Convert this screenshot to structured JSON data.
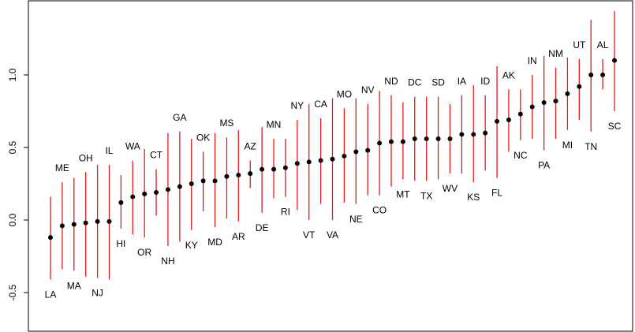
{
  "chart_data": {
    "type": "scatter",
    "title": "",
    "xlabel": "",
    "ylabel": "",
    "ylim": [
      -0.72,
      1.48
    ],
    "yticks": [
      -0.5,
      0.0,
      0.5,
      1.0
    ],
    "ytick_labels": [
      "-0.5",
      "0.0",
      "0.5",
      "1.0"
    ],
    "point_color": "#000000",
    "interval_color": "#e31a1c",
    "points": [
      {
        "label": "LA",
        "y": -0.12,
        "lo": -0.41,
        "hi": 0.16,
        "label_pos": "below"
      },
      {
        "label": "ME",
        "y": -0.04,
        "lo": -0.34,
        "hi": 0.26,
        "label_pos": "above"
      },
      {
        "label": "MA",
        "y": -0.03,
        "lo": -0.35,
        "hi": 0.29,
        "label_pos": "below"
      },
      {
        "label": "OH",
        "y": -0.02,
        "lo": -0.39,
        "hi": 0.33,
        "label_pos": "above"
      },
      {
        "label": "NJ",
        "y": -0.01,
        "lo": -0.4,
        "hi": 0.38,
        "label_pos": "below"
      },
      {
        "label": "IL",
        "y": -0.01,
        "lo": -0.41,
        "hi": 0.38,
        "label_pos": "above"
      },
      {
        "label": "HI",
        "y": 0.12,
        "lo": -0.06,
        "hi": 0.31,
        "label_pos": "below"
      },
      {
        "label": "WA",
        "y": 0.16,
        "lo": -0.1,
        "hi": 0.41,
        "label_pos": "above"
      },
      {
        "label": "OR",
        "y": 0.18,
        "lo": -0.12,
        "hi": 0.49,
        "label_pos": "below"
      },
      {
        "label": "CT",
        "y": 0.19,
        "lo": 0.03,
        "hi": 0.35,
        "label_pos": "above"
      },
      {
        "label": "NH",
        "y": 0.21,
        "lo": -0.18,
        "hi": 0.6,
        "label_pos": "below"
      },
      {
        "label": "GA",
        "y": 0.23,
        "lo": -0.15,
        "hi": 0.61,
        "label_pos": "above"
      },
      {
        "label": "KY",
        "y": 0.25,
        "lo": -0.07,
        "hi": 0.56,
        "label_pos": "below"
      },
      {
        "label": "OK",
        "y": 0.27,
        "lo": 0.06,
        "hi": 0.47,
        "label_pos": "above"
      },
      {
        "label": "MD",
        "y": 0.27,
        "lo": -0.05,
        "hi": 0.6,
        "label_pos": "below"
      },
      {
        "label": "MS",
        "y": 0.3,
        "lo": 0.01,
        "hi": 0.57,
        "label_pos": "above"
      },
      {
        "label": "AR",
        "y": 0.31,
        "lo": -0.01,
        "hi": 0.62,
        "label_pos": "below"
      },
      {
        "label": "AZ",
        "y": 0.32,
        "lo": 0.22,
        "hi": 0.41,
        "label_pos": "above"
      },
      {
        "label": "DE",
        "y": 0.35,
        "lo": 0.05,
        "hi": 0.64,
        "label_pos": "below"
      },
      {
        "label": "MN",
        "y": 0.35,
        "lo": 0.15,
        "hi": 0.56,
        "label_pos": "above"
      },
      {
        "label": "RI",
        "y": 0.36,
        "lo": 0.16,
        "hi": 0.56,
        "label_pos": "below"
      },
      {
        "label": "NY",
        "y": 0.39,
        "lo": 0.07,
        "hi": 0.69,
        "label_pos": "above"
      },
      {
        "label": "VT",
        "y": 0.4,
        "lo": 0.0,
        "hi": 0.8,
        "label_pos": "below"
      },
      {
        "label": "CA",
        "y": 0.41,
        "lo": 0.11,
        "hi": 0.7,
        "label_pos": "above"
      },
      {
        "label": "VA",
        "y": 0.42,
        "lo": 0.0,
        "hi": 0.84,
        "label_pos": "below"
      },
      {
        "label": "MO",
        "y": 0.44,
        "lo": 0.12,
        "hi": 0.77,
        "label_pos": "above"
      },
      {
        "label": "NE",
        "y": 0.47,
        "lo": 0.11,
        "hi": 0.84,
        "label_pos": "below"
      },
      {
        "label": "NV",
        "y": 0.48,
        "lo": 0.17,
        "hi": 0.8,
        "label_pos": "above"
      },
      {
        "label": "CO",
        "y": 0.53,
        "lo": 0.17,
        "hi": 0.89,
        "label_pos": "below"
      },
      {
        "label": "ND",
        "y": 0.54,
        "lo": 0.23,
        "hi": 0.86,
        "label_pos": "above"
      },
      {
        "label": "MT",
        "y": 0.54,
        "lo": 0.28,
        "hi": 0.81,
        "label_pos": "below"
      },
      {
        "label": "DC",
        "y": 0.56,
        "lo": 0.27,
        "hi": 0.85,
        "label_pos": "above"
      },
      {
        "label": "TX",
        "y": 0.56,
        "lo": 0.27,
        "hi": 0.85,
        "label_pos": "below"
      },
      {
        "label": "SD",
        "y": 0.56,
        "lo": 0.28,
        "hi": 0.85,
        "label_pos": "above"
      },
      {
        "label": "WV",
        "y": 0.56,
        "lo": 0.32,
        "hi": 0.8,
        "label_pos": "below"
      },
      {
        "label": "IA",
        "y": 0.59,
        "lo": 0.32,
        "hi": 0.86,
        "label_pos": "above"
      },
      {
        "label": "KS",
        "y": 0.59,
        "lo": 0.26,
        "hi": 0.93,
        "label_pos": "below"
      },
      {
        "label": "ID",
        "y": 0.6,
        "lo": 0.34,
        "hi": 0.86,
        "label_pos": "above"
      },
      {
        "label": "FL",
        "y": 0.68,
        "lo": 0.29,
        "hi": 1.06,
        "label_pos": "below"
      },
      {
        "label": "AK",
        "y": 0.69,
        "lo": 0.47,
        "hi": 0.9,
        "label_pos": "above"
      },
      {
        "label": "NC",
        "y": 0.73,
        "lo": 0.55,
        "hi": 0.9,
        "label_pos": "below"
      },
      {
        "label": "IN",
        "y": 0.78,
        "lo": 0.56,
        "hi": 1.0,
        "label_pos": "above"
      },
      {
        "label": "PA",
        "y": 0.81,
        "lo": 0.48,
        "hi": 1.13,
        "label_pos": "below"
      },
      {
        "label": "NM",
        "y": 0.82,
        "lo": 0.56,
        "hi": 1.05,
        "label_pos": "above"
      },
      {
        "label": "MI",
        "y": 0.87,
        "lo": 0.62,
        "hi": 1.12,
        "label_pos": "below"
      },
      {
        "label": "UT",
        "y": 0.92,
        "lo": 0.69,
        "hi": 1.11,
        "label_pos": "above"
      },
      {
        "label": "TN",
        "y": 1.0,
        "lo": 0.61,
        "hi": 1.38,
        "label_pos": "below"
      },
      {
        "label": "AL",
        "y": 1.0,
        "lo": 0.9,
        "hi": 1.11,
        "label_pos": "above"
      },
      {
        "label": "SC",
        "y": 1.1,
        "lo": 0.75,
        "hi": 1.44,
        "label_pos": "below"
      }
    ]
  }
}
